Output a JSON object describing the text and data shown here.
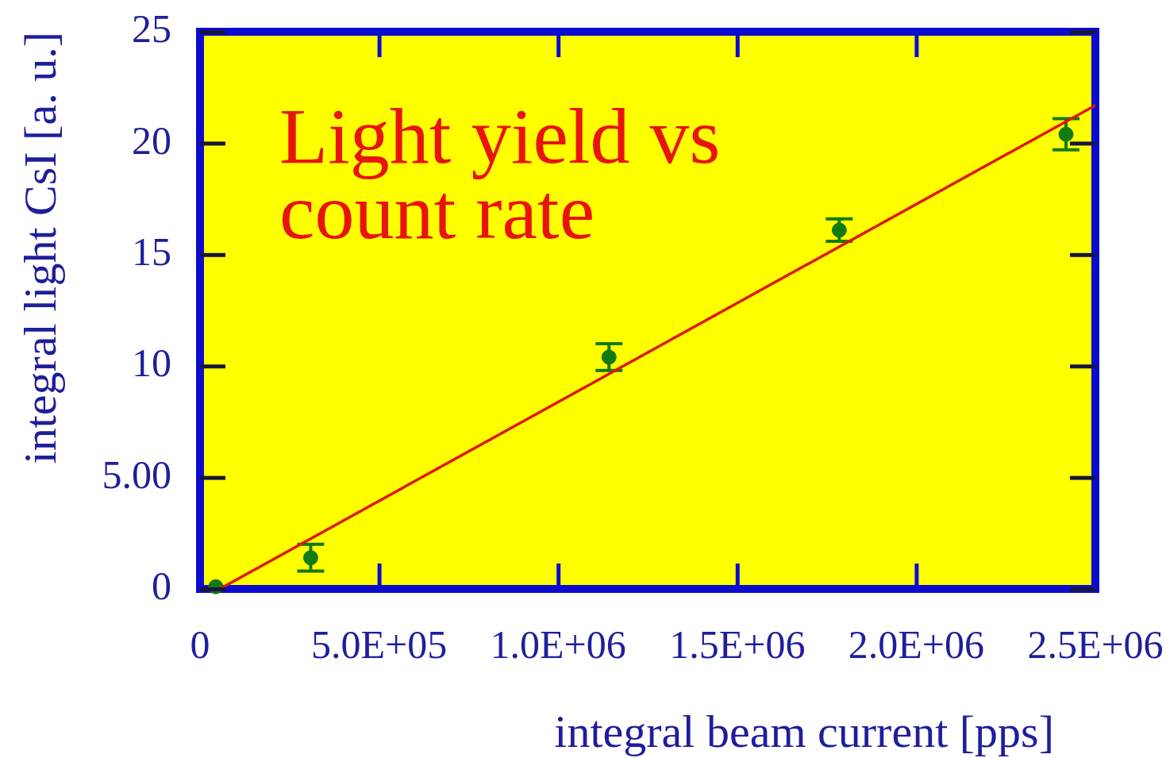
{
  "chart_data": {
    "type": "scatter",
    "title": "Light yield vs count rate",
    "xlabel": "integral beam current [pps]",
    "ylabel": "integral light CsI [a. u.]",
    "xlim": [
      0,
      2500000
    ],
    "ylim": [
      0,
      25
    ],
    "xticks": [
      0,
      {
        "value": 500000,
        "label": "5.0E+05"
      },
      {
        "value": 1000000,
        "label": "1.0E+06"
      },
      {
        "value": 1500000,
        "label": "1.5E+06"
      },
      {
        "value": 2000000,
        "label": "2.0E+06"
      },
      {
        "value": 2500000,
        "label": "2.5E+06"
      }
    ],
    "yticks": [
      0,
      {
        "value": 5,
        "label": "5.00"
      },
      10,
      15,
      20,
      25
    ],
    "grid": false,
    "legend": false,
    "series": [
      {
        "type": "scatter",
        "color": "#127a12",
        "marker": "circle",
        "x": [
          44000,
          309000,
          1142000,
          1785000,
          2418000
        ],
        "values": [
          0.1,
          1.4,
          10.4,
          16.1,
          20.4
        ],
        "errors": [
          null,
          0.6,
          0.6,
          0.5,
          0.7
        ]
      },
      {
        "type": "line",
        "color": "#dd1a00",
        "marker": "none",
        "line_style": "solid",
        "x": [
          55000,
          2500000
        ],
        "values": [
          0,
          21.7
        ]
      }
    ]
  }
}
